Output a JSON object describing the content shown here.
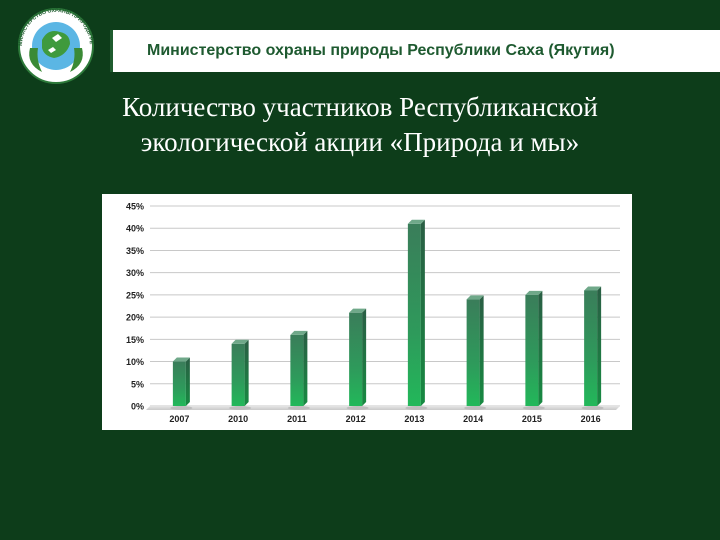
{
  "header": {
    "ministry": "Министерство охраны природы Республики Саха (Якутия)",
    "logo_text": "МИНИСТЕРСТВО ОХРАНЫ ПРИРОДЫ РЕСПУБЛИКИ САХА (ЯКУТИЯ)"
  },
  "slide": {
    "title_line1": "Количество участников Республиканской",
    "title_line2": "экологической акции «Природа и мы»"
  },
  "colors": {
    "background": "#0d3d1a",
    "bar": "#2e9a5b",
    "ministry_text": "#1e5a30"
  },
  "chart_data": {
    "type": "bar",
    "categories": [
      "2007",
      "2010",
      "2011",
      "2012",
      "2013",
      "2014",
      "2015",
      "2016"
    ],
    "values": [
      10,
      14,
      16,
      21,
      41,
      24,
      25,
      26
    ],
    "ylim": [
      0,
      45
    ],
    "yticks": [
      "0%",
      "5%",
      "10%",
      "15%",
      "20%",
      "25%",
      "30%",
      "35%",
      "40%",
      "45%"
    ],
    "grid": true
  }
}
